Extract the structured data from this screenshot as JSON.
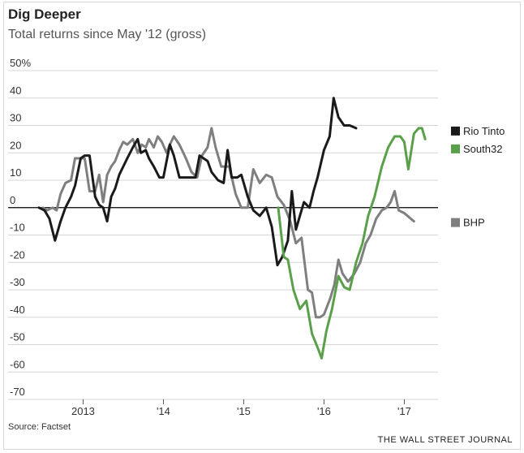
{
  "header": {
    "title": "Dig Deeper",
    "subtitle": "Total returns since May '12 (gross)"
  },
  "footer": {
    "source": "Source: Factset",
    "credit": "THE WALL STREET JOURNAL"
  },
  "chart_data": {
    "type": "line",
    "title": "Dig Deeper",
    "subtitle": "Total returns since May '12 (gross)",
    "xlabel": "",
    "ylabel": "",
    "xlim": [
      2012.45,
      2017.42
    ],
    "ylim": [
      -70,
      50
    ],
    "yticks": [
      {
        "value": 50,
        "label": "50%"
      },
      {
        "value": 40,
        "label": "40"
      },
      {
        "value": 30,
        "label": "30"
      },
      {
        "value": 20,
        "label": "20"
      },
      {
        "value": 10,
        "label": "10"
      },
      {
        "value": 0,
        "label": "0"
      },
      {
        "value": -10,
        "label": "-10"
      },
      {
        "value": -20,
        "label": "-20"
      },
      {
        "value": -30,
        "label": "-30"
      },
      {
        "value": -40,
        "label": "-40"
      },
      {
        "value": -50,
        "label": "-50"
      },
      {
        "value": -60,
        "label": "-60"
      },
      {
        "value": -70,
        "label": "-70"
      }
    ],
    "xticks": [
      {
        "value": 2013,
        "label": "2013"
      },
      {
        "value": 2014,
        "label": "'14"
      },
      {
        "value": 2015,
        "label": "'15"
      },
      {
        "value": 2016,
        "label": "'16"
      },
      {
        "value": 2017,
        "label": "'17"
      }
    ],
    "grid": true,
    "legend_position": "right",
    "colors": {
      "rio": "#1a1a1a",
      "south32": "#5aa04a",
      "bhp": "#7f7f7f",
      "grid": "#d6d6d6",
      "zero": "#000000"
    },
    "series": [
      {
        "name": "BHP",
        "color": "#7f7f7f",
        "legend_value": -5,
        "points": [
          [
            2012.5,
            0
          ],
          [
            2012.55,
            -1
          ],
          [
            2012.62,
            0
          ],
          [
            2012.67,
            -1
          ],
          [
            2012.72,
            5
          ],
          [
            2012.78,
            9
          ],
          [
            2012.85,
            10
          ],
          [
            2012.9,
            18
          ],
          [
            2012.97,
            18
          ],
          [
            2013.02,
            18
          ],
          [
            2013.08,
            6
          ],
          [
            2013.15,
            6
          ],
          [
            2013.2,
            12
          ],
          [
            2013.25,
            2
          ],
          [
            2013.3,
            12
          ],
          [
            2013.35,
            15
          ],
          [
            2013.4,
            17
          ],
          [
            2013.45,
            21
          ],
          [
            2013.5,
            24
          ],
          [
            2013.55,
            23
          ],
          [
            2013.62,
            25
          ],
          [
            2013.68,
            20
          ],
          [
            2013.73,
            23
          ],
          [
            2013.78,
            22
          ],
          [
            2013.82,
            25
          ],
          [
            2013.88,
            22
          ],
          [
            2013.93,
            26
          ],
          [
            2013.98,
            24
          ],
          [
            2014.04,
            20
          ],
          [
            2014.08,
            23
          ],
          [
            2014.13,
            26
          ],
          [
            2014.2,
            23
          ],
          [
            2014.28,
            18
          ],
          [
            2014.35,
            13
          ],
          [
            2014.42,
            11
          ],
          [
            2014.48,
            19
          ],
          [
            2014.55,
            22
          ],
          [
            2014.6,
            29
          ],
          [
            2014.65,
            22
          ],
          [
            2014.72,
            15
          ],
          [
            2014.82,
            15
          ],
          [
            2014.9,
            5
          ],
          [
            2014.97,
            0
          ],
          [
            2015.05,
            0
          ],
          [
            2015.12,
            14
          ],
          [
            2015.2,
            9
          ],
          [
            2015.28,
            12
          ],
          [
            2015.35,
            11
          ],
          [
            2015.42,
            4
          ],
          [
            2015.5,
            1
          ],
          [
            2015.58,
            -5
          ],
          [
            2015.65,
            -13
          ],
          [
            2015.72,
            -11
          ],
          [
            2015.8,
            -30
          ],
          [
            2015.85,
            -31
          ],
          [
            2015.9,
            -40
          ],
          [
            2015.95,
            -40
          ],
          [
            2016.0,
            -39
          ],
          [
            2016.08,
            -33
          ],
          [
            2016.13,
            -28
          ],
          [
            2016.18,
            -19
          ],
          [
            2016.23,
            -24
          ],
          [
            2016.3,
            -27
          ],
          [
            2016.38,
            -24
          ],
          [
            2016.45,
            -20
          ],
          [
            2016.52,
            -13
          ],
          [
            2016.58,
            -10
          ],
          [
            2016.65,
            -4
          ],
          [
            2016.72,
            -1
          ],
          [
            2016.78,
            0
          ],
          [
            2016.83,
            2
          ],
          [
            2016.88,
            6
          ],
          [
            2016.93,
            -1
          ],
          [
            2017.0,
            -2
          ],
          [
            2017.08,
            -4
          ],
          [
            2017.12,
            -5
          ]
        ]
      },
      {
        "name": "Rio Tinto",
        "color": "#1a1a1a",
        "legend_value": 29,
        "points": [
          [
            2012.45,
            0
          ],
          [
            2012.52,
            -1
          ],
          [
            2012.58,
            -4
          ],
          [
            2012.65,
            -12
          ],
          [
            2012.72,
            -5
          ],
          [
            2012.78,
            0
          ],
          [
            2012.85,
            4
          ],
          [
            2012.9,
            8
          ],
          [
            2012.97,
            18
          ],
          [
            2013.02,
            19
          ],
          [
            2013.08,
            19
          ],
          [
            2013.15,
            4
          ],
          [
            2013.2,
            1
          ],
          [
            2013.25,
            0
          ],
          [
            2013.3,
            -5
          ],
          [
            2013.35,
            4
          ],
          [
            2013.4,
            7
          ],
          [
            2013.45,
            12
          ],
          [
            2013.55,
            18
          ],
          [
            2013.62,
            22
          ],
          [
            2013.68,
            25
          ],
          [
            2013.72,
            20
          ],
          [
            2013.78,
            21
          ],
          [
            2013.82,
            18
          ],
          [
            2013.88,
            15
          ],
          [
            2013.95,
            11
          ],
          [
            2014.0,
            11
          ],
          [
            2014.08,
            23
          ],
          [
            2014.13,
            19
          ],
          [
            2014.2,
            11
          ],
          [
            2014.28,
            11
          ],
          [
            2014.35,
            11
          ],
          [
            2014.4,
            11
          ],
          [
            2014.45,
            19
          ],
          [
            2014.55,
            17
          ],
          [
            2014.6,
            13
          ],
          [
            2014.68,
            10
          ],
          [
            2014.75,
            9
          ],
          [
            2014.8,
            21
          ],
          [
            2014.85,
            11
          ],
          [
            2014.92,
            11
          ],
          [
            2014.97,
            12
          ],
          [
            2015.05,
            4
          ],
          [
            2015.12,
            -1
          ],
          [
            2015.2,
            -3
          ],
          [
            2015.28,
            0
          ],
          [
            2015.35,
            -7
          ],
          [
            2015.42,
            -21
          ],
          [
            2015.48,
            -18
          ],
          [
            2015.55,
            -12
          ],
          [
            2015.6,
            6
          ],
          [
            2015.65,
            -8
          ],
          [
            2015.7,
            -3
          ],
          [
            2015.75,
            2
          ],
          [
            2015.82,
            0
          ],
          [
            2015.87,
            6
          ],
          [
            2015.92,
            11
          ],
          [
            2016.0,
            21
          ],
          [
            2016.07,
            26
          ],
          [
            2016.12,
            40
          ],
          [
            2016.18,
            33
          ],
          [
            2016.25,
            30
          ],
          [
            2016.32,
            30
          ],
          [
            2016.4,
            29
          ]
        ]
      },
      {
        "name": "South32",
        "color": "#5aa04a",
        "legend_value": 25,
        "points": [
          [
            2015.43,
            0
          ],
          [
            2015.5,
            -18
          ],
          [
            2015.55,
            -19
          ],
          [
            2015.62,
            -30
          ],
          [
            2015.7,
            -37
          ],
          [
            2015.78,
            -34
          ],
          [
            2015.85,
            -46
          ],
          [
            2015.92,
            -51
          ],
          [
            2015.97,
            -55
          ],
          [
            2016.03,
            -45
          ],
          [
            2016.1,
            -37
          ],
          [
            2016.18,
            -25
          ],
          [
            2016.25,
            -29
          ],
          [
            2016.32,
            -30
          ],
          [
            2016.4,
            -20
          ],
          [
            2016.48,
            -13
          ],
          [
            2016.55,
            -3
          ],
          [
            2016.63,
            4
          ],
          [
            2016.72,
            15
          ],
          [
            2016.8,
            22
          ],
          [
            2016.88,
            26
          ],
          [
            2016.95,
            26
          ],
          [
            2017.0,
            24
          ],
          [
            2017.05,
            14
          ],
          [
            2017.12,
            27
          ],
          [
            2017.18,
            29
          ],
          [
            2017.22,
            29
          ],
          [
            2017.26,
            25
          ]
        ]
      }
    ],
    "legend": [
      {
        "label": "Rio Tinto",
        "color": "#1a1a1a"
      },
      {
        "label": "South32",
        "color": "#5aa04a"
      },
      {
        "label": "BHP",
        "color": "#7f7f7f"
      }
    ]
  }
}
